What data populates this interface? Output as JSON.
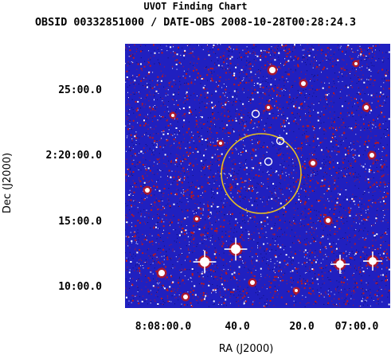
{
  "title": "UVOT Finding Chart",
  "subtitle": "OBSID 00332851000 / DATE-OBS 2008-10-28T00:28:24.3",
  "chart_data": {
    "type": "image",
    "title": "UVOT Finding Chart",
    "subtitle": "OBSID 00332851000 / DATE-OBS 2008-10-28T00:28:24.3",
    "xlabel": "RA (J2000)",
    "ylabel": "Dec (J2000)",
    "x_tick_labels": [
      "8:08:00.0",
      "40.0",
      "20.0",
      "07:00.0"
    ],
    "y_tick_labels": [
      "25:00.0",
      "2:20:00.0",
      "15:00.0",
      "10:00.0"
    ],
    "colors": {
      "background": "#2020c0",
      "noise_red": "#c01818",
      "noise_white": "#ffffff",
      "circle": "#e8c020"
    }
  }
}
